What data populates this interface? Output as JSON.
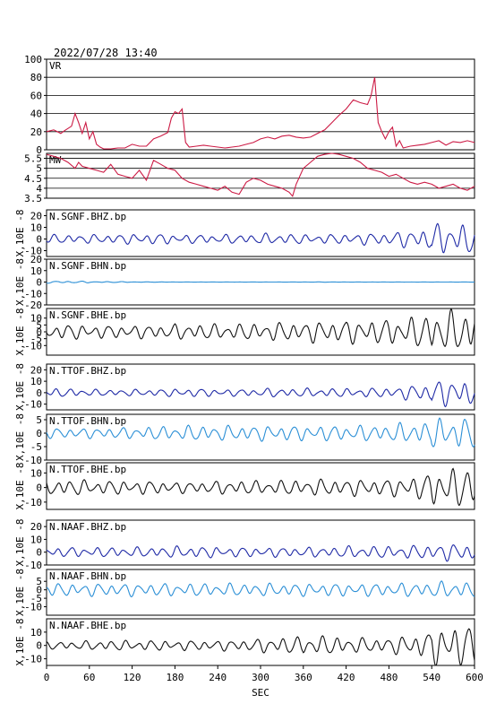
{
  "header": {
    "timestamp": "2022/07/28 13:40"
  },
  "chart_data": {
    "type": "line",
    "xlabel": "SEC",
    "xlim": [
      0,
      600
    ],
    "xticks": [
      0,
      60,
      120,
      180,
      240,
      300,
      360,
      420,
      480,
      540,
      600
    ],
    "grid": "horizontal lines in VR and MW panels only",
    "panels": [
      {
        "id": "vr",
        "label": "VR",
        "color": "#cc1b45",
        "ylim": [
          0,
          100
        ],
        "yticks": [
          0,
          20,
          40,
          60,
          80,
          100
        ],
        "ylabel": "",
        "grid": true,
        "x": [
          0,
          10,
          20,
          25,
          35,
          40,
          45,
          50,
          55,
          60,
          65,
          70,
          75,
          80,
          90,
          100,
          110,
          120,
          130,
          140,
          150,
          160,
          170,
          175,
          180,
          185,
          190,
          195,
          200,
          210,
          220,
          230,
          240,
          250,
          260,
          270,
          280,
          290,
          300,
          310,
          320,
          330,
          340,
          350,
          360,
          370,
          380,
          390,
          400,
          410,
          420,
          430,
          440,
          450,
          455,
          460,
          465,
          470,
          475,
          480,
          485,
          490,
          495,
          500,
          505,
          510,
          520,
          530,
          540,
          550,
          560,
          570,
          580,
          590,
          600
        ],
        "values": [
          20,
          22,
          18,
          21,
          26,
          40,
          30,
          18,
          30,
          12,
          20,
          6,
          3,
          1,
          1,
          2,
          2,
          6,
          4,
          4,
          12,
          15,
          19,
          35,
          42,
          40,
          45,
          8,
          3,
          4,
          5,
          4,
          3,
          2,
          3,
          4,
          6,
          8,
          12,
          14,
          12,
          15,
          16,
          14,
          13,
          14,
          18,
          22,
          30,
          38,
          45,
          55,
          52,
          50,
          60,
          80,
          30,
          20,
          12,
          20,
          25,
          4,
          10,
          2,
          3,
          4,
          5,
          6,
          8,
          10,
          5,
          9,
          8,
          10,
          8
        ]
      },
      {
        "id": "mw",
        "label": "MW",
        "color": "#cc1b45",
        "ylim": [
          3.5,
          5.75
        ],
        "yticks": [
          3.5,
          4.0,
          4.5,
          5.0,
          5.5
        ],
        "ylabel": "",
        "grid": true,
        "x": [
          0,
          10,
          20,
          30,
          40,
          45,
          50,
          60,
          70,
          80,
          90,
          100,
          110,
          120,
          130,
          140,
          150,
          160,
          170,
          180,
          190,
          200,
          210,
          220,
          230,
          240,
          250,
          260,
          270,
          280,
          290,
          300,
          310,
          320,
          330,
          340,
          345,
          350,
          360,
          370,
          380,
          390,
          400,
          410,
          420,
          430,
          440,
          450,
          460,
          470,
          480,
          490,
          500,
          510,
          520,
          530,
          540,
          550,
          560,
          570,
          580,
          590,
          600
        ],
        "values": [
          5.7,
          5.6,
          5.5,
          5.3,
          5.0,
          5.3,
          5.1,
          5.0,
          4.9,
          4.8,
          5.2,
          4.7,
          4.6,
          4.5,
          4.9,
          4.4,
          5.4,
          5.2,
          5.0,
          4.9,
          4.5,
          4.3,
          4.2,
          4.1,
          4.0,
          3.9,
          4.1,
          3.8,
          3.7,
          4.3,
          4.5,
          4.4,
          4.2,
          4.1,
          4.0,
          3.8,
          3.6,
          4.2,
          5.0,
          5.3,
          5.6,
          5.7,
          5.8,
          5.7,
          5.6,
          5.5,
          5.3,
          5.0,
          4.9,
          4.8,
          4.6,
          4.7,
          4.5,
          4.3,
          4.2,
          4.3,
          4.2,
          4.0,
          4.1,
          4.2,
          4.0,
          3.9,
          4.1
        ]
      },
      {
        "id": "sgnf-bhz",
        "label": "N.SGNF.BHZ.bp",
        "color": "#1f2aa6",
        "ylim": [
          -15,
          25
        ],
        "yticks": [
          -10,
          0,
          10,
          20
        ],
        "ylabel": "X,10E -8",
        "amp": [
          4,
          4,
          5,
          4,
          4,
          5,
          4,
          5,
          6,
          14
        ]
      },
      {
        "id": "sgnf-bhn",
        "label": "N.SGNF.BHN.bp",
        "color": "#2b8fd6",
        "ylim": [
          -20,
          20
        ],
        "yticks": [
          -20,
          -10,
          0,
          10,
          20
        ],
        "ylabel": "X,10E -8",
        "amp": [
          1,
          0.5,
          0.2,
          0.1,
          0.1,
          0.1,
          0.2,
          0.1,
          0.1,
          0.1
        ]
      },
      {
        "id": "sgnf-bhe",
        "label": "N.SGNF.BHE.bp",
        "color": "#111111",
        "ylim": [
          -17,
          17
        ],
        "yticks": [
          -10,
          -5,
          0,
          5,
          10
        ],
        "ylabel": "X,10E -8",
        "amp": [
          6,
          5,
          5,
          6,
          6,
          7,
          8,
          9,
          10,
          16
        ]
      },
      {
        "id": "ttof-bhz",
        "label": "N.TTOF.BHZ.bp",
        "color": "#1f2aa6",
        "ylim": [
          -15,
          25
        ],
        "yticks": [
          -10,
          0,
          10,
          20
        ],
        "ylabel": "X,10E -8",
        "amp": [
          4,
          3,
          3,
          4,
          3,
          4,
          4,
          4,
          5,
          12
        ]
      },
      {
        "id": "ttof-bhn",
        "label": "N.TTOF.BHN.bp",
        "color": "#2b8fd6",
        "ylim": [
          -10,
          7
        ],
        "yticks": [
          -10,
          -5,
          0,
          5
        ],
        "ylabel": "X,10E -8",
        "amp": [
          2,
          2,
          2.5,
          3,
          3,
          3,
          3,
          3,
          3.5,
          6
        ]
      },
      {
        "id": "ttof-bhe",
        "label": "N.TTOF.BHE.bp",
        "color": "#111111",
        "ylim": [
          -15,
          17
        ],
        "yticks": [
          -10,
          0,
          10
        ],
        "ylabel": "X,10E -8",
        "amp": [
          6,
          5,
          5,
          4,
          5,
          5,
          6,
          6,
          6,
          14
        ]
      },
      {
        "id": "naaf-bhz",
        "label": "N.NAAF.BHZ.bp",
        "color": "#1f2aa6",
        "ylim": [
          -10,
          25
        ],
        "yticks": [
          -10,
          0,
          10,
          20
        ],
        "ylabel": "X,10E -8",
        "amp": [
          4,
          4,
          4,
          5,
          4,
          4,
          4,
          5,
          5,
          7
        ]
      },
      {
        "id": "naaf-bhn",
        "label": "N.NAAF.BHN.bp",
        "color": "#2b8fd6",
        "ylim": [
          -15,
          12
        ],
        "yticks": [
          -10,
          -5,
          0,
          5
        ],
        "ylabel": "X,10E -8",
        "amp": [
          4,
          4,
          4,
          4,
          4,
          4,
          4,
          4,
          4,
          5
        ]
      },
      {
        "id": "naaf-bhe",
        "label": "N.NAAF.BHE.bp",
        "color": "#111111",
        "ylim": [
          -15,
          20
        ],
        "yticks": [
          -10,
          0,
          10
        ],
        "ylabel": "X,10E -8",
        "amp": [
          3,
          4,
          4,
          4,
          4,
          6,
          8,
          6,
          6,
          16
        ]
      }
    ]
  }
}
